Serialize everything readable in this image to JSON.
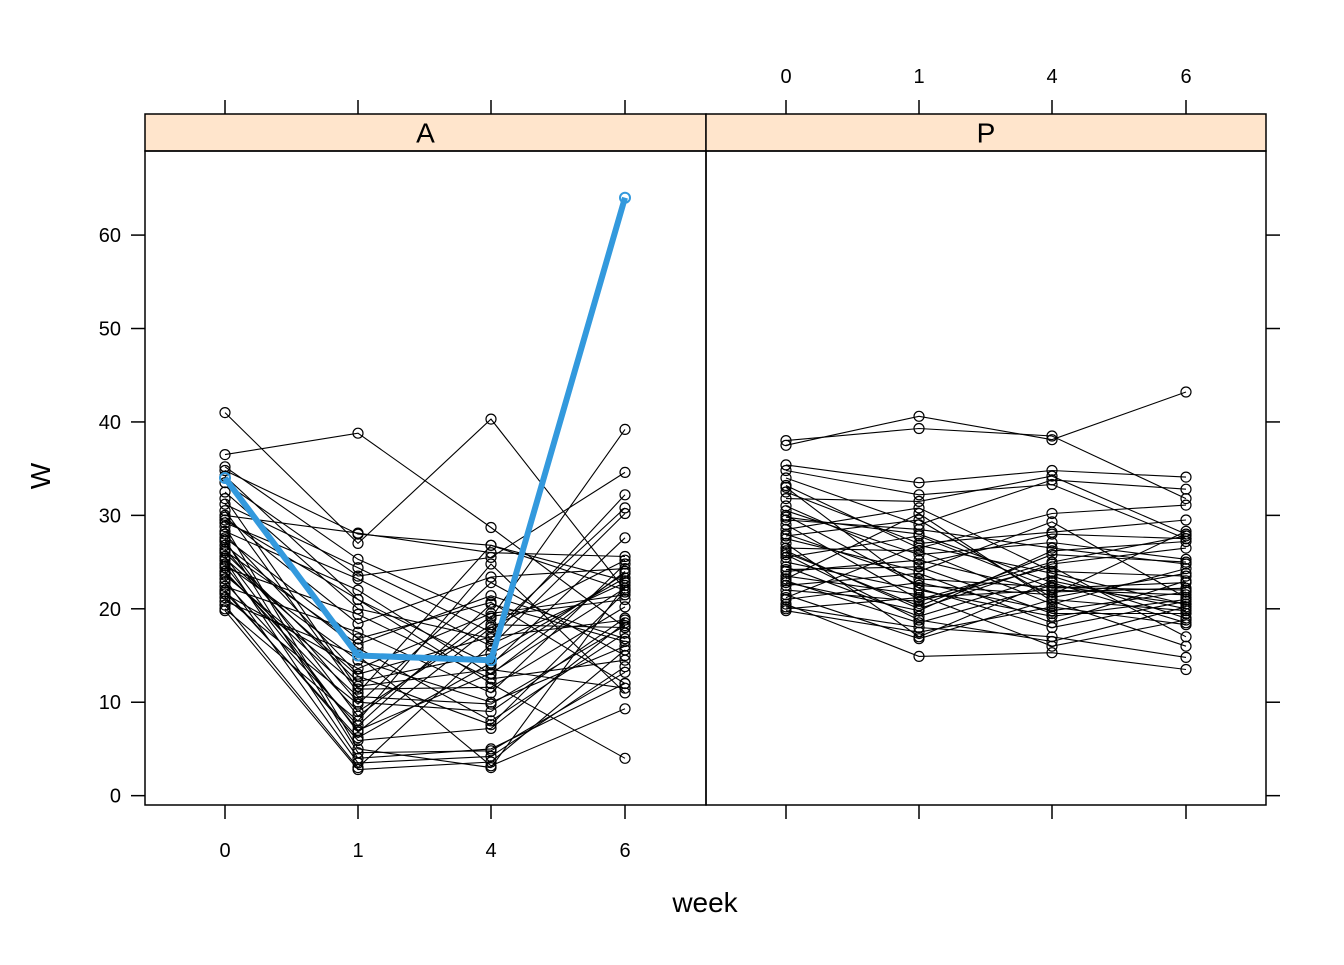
{
  "chart_data": {
    "type": "line",
    "layout": "lattice-two-panels",
    "xlabel": "week",
    "ylabel": "W",
    "x_categories": [
      "0",
      "1",
      "4",
      "6"
    ],
    "ylim": [
      -1,
      69
    ],
    "y_ticks": [
      0,
      10,
      20,
      30,
      40,
      50,
      60
    ],
    "strip_color": "#ffe5cc",
    "line_color": "#000000",
    "highlight_color": "#3399dd",
    "panels": [
      {
        "name": "A",
        "highlight": {
          "values": [
            34,
            15,
            14.5,
            64
          ]
        },
        "series": [
          [
            41,
            27,
            40.3,
            22
          ],
          [
            36.5,
            38.8,
            28.7,
            18
          ],
          [
            35.2,
            25.3,
            19,
            39.2
          ],
          [
            34.8,
            28,
            26.8,
            22
          ],
          [
            34.2,
            21,
            12,
            4
          ],
          [
            33.5,
            23.5,
            25.5,
            34.6
          ],
          [
            32.5,
            20,
            16.8,
            32.2
          ],
          [
            31.2,
            24.4,
            17.5,
            30.8
          ],
          [
            30.5,
            11,
            26.8,
            23
          ],
          [
            30,
            28.1,
            26,
            25.6
          ],
          [
            29.5,
            21,
            14,
            27.6
          ],
          [
            29.2,
            23.2,
            16,
            30.2
          ],
          [
            28.8,
            5,
            3,
            22.5
          ],
          [
            28.3,
            22,
            13,
            24
          ],
          [
            28,
            13,
            17,
            18.8
          ],
          [
            27.6,
            16.8,
            20.7,
            12
          ],
          [
            27.2,
            8.5,
            19.2,
            21
          ],
          [
            26.8,
            15.8,
            8,
            17.4
          ],
          [
            26.4,
            10,
            9,
            19
          ],
          [
            26,
            12.2,
            15.2,
            23.3
          ],
          [
            25.6,
            6.8,
            18,
            25.2
          ],
          [
            25.2,
            4,
            5,
            12
          ],
          [
            24.8,
            14.5,
            10,
            16
          ],
          [
            24.4,
            19.4,
            12.5,
            14.5
          ],
          [
            24,
            9,
            18.3,
            18
          ],
          [
            23.6,
            11.7,
            13.5,
            11.5
          ],
          [
            23.2,
            3.5,
            4.2,
            13.8
          ],
          [
            22.8,
            7.5,
            20.5,
            16.5
          ],
          [
            22.4,
            17.5,
            11,
            24.8
          ],
          [
            22,
            5.9,
            7.2,
            18.5
          ],
          [
            21.6,
            13.6,
            19.5,
            21.5
          ],
          [
            21.2,
            9.8,
            22.8,
            15
          ],
          [
            20.8,
            15,
            3.2,
            9.3
          ],
          [
            20.4,
            3,
            16.2,
            22.8
          ],
          [
            20,
            8,
            24.8,
            11
          ],
          [
            19.8,
            2.8,
            3.6,
            15.6
          ],
          [
            21.8,
            6.2,
            14.2,
            23.8
          ],
          [
            23.8,
            10.6,
            9.8,
            18.2
          ],
          [
            25.4,
            12.8,
            7.6,
            21.8
          ],
          [
            27.4,
            4.6,
            4.8,
            13.2
          ],
          [
            29.8,
            18.4,
            23.4,
            24.3
          ],
          [
            31.8,
            11.4,
            11.6,
            20.2
          ],
          [
            26.2,
            16.2,
            21.4,
            16.8
          ],
          [
            24.6,
            7,
            13.1,
            22.2
          ]
        ]
      },
      {
        "name": "P",
        "series": [
          [
            38,
            39.3,
            38.5,
            31.8
          ],
          [
            37.5,
            40.6,
            38.1,
            43.2
          ],
          [
            35.4,
            33.5,
            34.8,
            34.1
          ],
          [
            34.8,
            32.2,
            33.3,
            27.5
          ],
          [
            34,
            29,
            33.8,
            32.8
          ],
          [
            33.2,
            26.5,
            30.2,
            31.1
          ],
          [
            32.5,
            27,
            28.2,
            29.5
          ],
          [
            31.8,
            31.5,
            34.2,
            28
          ],
          [
            31,
            24.8,
            28,
            27.5
          ],
          [
            30.5,
            25.8,
            27.1,
            25.3
          ],
          [
            30,
            22.5,
            21.5,
            28.3
          ],
          [
            29.5,
            28.5,
            26.5,
            24.8
          ],
          [
            29,
            21,
            25,
            27.8
          ],
          [
            28.5,
            30.8,
            24,
            23.5
          ],
          [
            28,
            23.2,
            22.3,
            22
          ],
          [
            27.5,
            24,
            29.3,
            21.2
          ],
          [
            27,
            17,
            23,
            20
          ],
          [
            26.5,
            26.2,
            20.5,
            24.3
          ],
          [
            26,
            20.3,
            25.8,
            25
          ],
          [
            25.5,
            27.8,
            22.2,
            22.8
          ],
          [
            25,
            22,
            19.2,
            21
          ],
          [
            24.5,
            19.2,
            23.5,
            19
          ],
          [
            24,
            25.2,
            21.8,
            22.2
          ],
          [
            23.5,
            21.5,
            16,
            18.8
          ],
          [
            23,
            18.5,
            22.5,
            20.5
          ],
          [
            22.5,
            23.8,
            18.5,
            23
          ],
          [
            22,
            20.8,
            24.5,
            17
          ],
          [
            21.5,
            16.8,
            21,
            19.8
          ],
          [
            21,
            22.8,
            19.8,
            21.8
          ],
          [
            20.5,
            14.9,
            15.3,
            13.5
          ],
          [
            20.2,
            18,
            17,
            14.8
          ],
          [
            20,
            21.2,
            22,
            21.5
          ],
          [
            19.8,
            17.5,
            20.2,
            18.3
          ],
          [
            21.2,
            26.8,
            23.8,
            20.5
          ],
          [
            22.8,
            19.8,
            26.2,
            27.2
          ],
          [
            24.2,
            24.5,
            19.5,
            19.5
          ],
          [
            26.2,
            20,
            24.8,
            26.5
          ],
          [
            27.8,
            29.5,
            21.2,
            23.8
          ],
          [
            29.8,
            28,
            22.8,
            18.5
          ],
          [
            33,
            22.2,
            18,
            20.8
          ],
          [
            25.8,
            18.8,
            16.5,
            20.2
          ],
          [
            23.2,
            30.2,
            20.8,
            16
          ]
        ]
      }
    ]
  }
}
